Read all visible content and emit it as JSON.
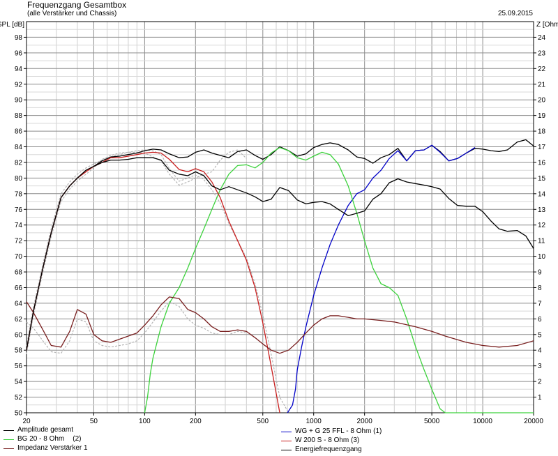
{
  "chart_data": {
    "type": "line",
    "title": "Frequenzgang Gesamtbox",
    "subtitle": "(alle Verstärker und Chassis)",
    "date": "25.09.2015",
    "ylabel_left": "SPL [dB]",
    "ylabel_right": "Z [Ohm]",
    "x_scale": "log",
    "xlim": [
      20,
      20000
    ],
    "ylim_left": [
      50,
      100
    ],
    "ylim_right": [
      0,
      25
    ],
    "grid": true,
    "x_tick_labels": [
      "20",
      "50",
      "100",
      "200",
      "500",
      "1000",
      "2000",
      "5000",
      "10000",
      "20000"
    ],
    "y_left_ticks": [
      50,
      52,
      54,
      56,
      58,
      60,
      62,
      64,
      66,
      68,
      70,
      72,
      74,
      76,
      78,
      80,
      82,
      84,
      86,
      88,
      90,
      92,
      94,
      96,
      98
    ],
    "y_right_ticks": [
      1,
      2,
      3,
      4,
      5,
      6,
      7,
      8,
      9,
      10,
      11,
      12,
      13,
      14,
      15,
      16,
      17,
      18,
      19,
      20,
      21,
      22,
      23,
      24
    ],
    "series": [
      {
        "name": "Amplitude gesamt",
        "color": "#000000",
        "x": [
          20,
          22,
          25,
          28,
          32,
          36,
          40,
          45,
          50,
          56,
          63,
          71,
          80,
          90,
          100,
          112,
          125,
          140,
          160,
          180,
          200,
          224,
          250,
          280,
          315,
          355,
          400,
          450,
          500,
          560,
          630,
          710,
          800,
          900,
          1000,
          1120,
          1250,
          1400,
          1600,
          1800,
          2000,
          2240,
          2500,
          2800,
          3150,
          3550,
          4000,
          4500,
          5000,
          5600,
          6300,
          7100,
          8000,
          9000,
          10000,
          11200,
          12500,
          14000,
          16000,
          18000,
          20000
        ],
        "y": [
          58,
          63,
          68.5,
          73,
          77.5,
          79,
          80,
          81,
          81.5,
          82.2,
          82.7,
          82.8,
          83,
          83.2,
          83.5,
          83.7,
          83.6,
          83.1,
          82.6,
          82.7,
          83.3,
          83.6,
          83.2,
          82.9,
          82.6,
          83.4,
          83.6,
          82.9,
          82.4,
          83,
          84,
          83.5,
          82.8,
          83.1,
          83.9,
          84.3,
          84.5,
          84.3,
          83.6,
          82.7,
          82.5,
          81.9,
          82.6,
          83,
          83.8,
          82.2,
          83.5,
          83.6,
          84.2,
          83.4,
          82.2,
          82.5,
          83.2,
          83.8,
          83.7,
          83.5,
          83.4,
          83.6,
          84.6,
          84.9,
          84.1
        ]
      },
      {
        "name": "WG + G 25 FFL - 8 Ohm (1)",
        "color": "#0000c8",
        "x": [
          700,
          750,
          780,
          800,
          850,
          900,
          1000,
          1120,
          1250,
          1400,
          1600,
          1800,
          2000,
          2240,
          2500,
          2800,
          3150,
          3550,
          4000,
          4500,
          5000,
          5600,
          6300,
          7100,
          8000,
          9000
        ],
        "y": [
          50,
          51,
          53,
          55.5,
          58.5,
          61,
          65,
          68.5,
          71.5,
          74,
          76.5,
          78,
          78.5,
          80,
          81,
          82.5,
          83.5,
          82.2,
          83.5,
          83.6,
          84.2,
          83.3,
          82.2,
          82.5,
          83.2,
          83.9
        ]
      },
      {
        "name": "BG 20 - 8 Ohm",
        "tag": "(2)",
        "color": "#3cd23c",
        "x": [
          100,
          104,
          108,
          112,
          125,
          140,
          160,
          180,
          200,
          224,
          250,
          280,
          315,
          355,
          400,
          450,
          500,
          560,
          630,
          710,
          800,
          900,
          1000,
          1120,
          1250,
          1400,
          1600,
          1800,
          2000,
          2240,
          2500,
          2800,
          3150,
          3550,
          4000,
          4500,
          5000,
          5600,
          6000,
          20000
        ],
        "y": [
          50,
          52,
          55,
          57,
          61,
          64,
          66,
          68.5,
          71,
          73.5,
          76,
          78.5,
          80.5,
          81.6,
          81.7,
          81.3,
          82,
          83.2,
          83.9,
          83.5,
          82.6,
          82.3,
          82.8,
          83.3,
          83,
          81.8,
          79,
          75.5,
          72,
          68.5,
          66.5,
          66,
          65,
          62,
          58.5,
          55.5,
          53,
          50.5,
          50,
          50
        ]
      },
      {
        "name": "W 200 S - 8 Ohm (3)",
        "color": "#c81e1e",
        "x": [
          20,
          22,
          25,
          28,
          32,
          36,
          40,
          45,
          50,
          56,
          63,
          71,
          80,
          90,
          100,
          112,
          125,
          140,
          160,
          180,
          200,
          224,
          250,
          280,
          315,
          355,
          400,
          450,
          500,
          560,
          630
        ],
        "y": [
          58,
          63,
          68.5,
          73,
          77.5,
          79,
          80,
          80.8,
          81.5,
          82,
          82.6,
          82.6,
          82.8,
          83,
          83.2,
          83.3,
          83.2,
          82.4,
          81.1,
          80.8,
          81.2,
          80.8,
          79.5,
          77.5,
          74.5,
          72,
          69.5,
          66,
          61.5,
          56,
          50
        ]
      },
      {
        "name": "Impedanz Verstärker 1",
        "axis": "right",
        "color": "#781e1e",
        "x": [
          20,
          22,
          25,
          28,
          32,
          36,
          40,
          45,
          50,
          56,
          63,
          71,
          80,
          90,
          100,
          112,
          125,
          140,
          160,
          180,
          200,
          224,
          250,
          280,
          315,
          355,
          400,
          450,
          500,
          560,
          630,
          710,
          800,
          900,
          1000,
          1120,
          1250,
          1400,
          1600,
          1800,
          2000,
          2500,
          3000,
          4000,
          5000,
          6000,
          8000,
          10000,
          12500,
          16000,
          20000
        ],
        "y": [
          7.1,
          6.4,
          5.3,
          4.3,
          4.2,
          5.2,
          6.6,
          6.3,
          5,
          4.6,
          4.5,
          4.7,
          4.9,
          5.1,
          5.6,
          6.2,
          6.9,
          7.4,
          7.3,
          6.6,
          6.4,
          6,
          5.5,
          5.2,
          5.2,
          5.3,
          5.2,
          4.8,
          4.4,
          4,
          3.8,
          4,
          4.5,
          5.1,
          5.6,
          6,
          6.2,
          6.2,
          6.1,
          6,
          6,
          5.9,
          5.8,
          5.5,
          5.2,
          4.9,
          4.5,
          4.3,
          4.2,
          4.3,
          4.6
        ]
      },
      {
        "name": "Energiefrequenzgang",
        "color": "#000000",
        "x": [
          20,
          22,
          25,
          28,
          32,
          36,
          40,
          45,
          50,
          56,
          63,
          71,
          80,
          90,
          100,
          112,
          125,
          140,
          160,
          180,
          200,
          224,
          250,
          280,
          315,
          355,
          400,
          450,
          500,
          560,
          630,
          710,
          800,
          900,
          1000,
          1120,
          1250,
          1400,
          1600,
          1800,
          2000,
          2240,
          2500,
          2800,
          3150,
          3550,
          4000,
          4500,
          5000,
          5600,
          6300,
          7100,
          8000,
          9000,
          10000,
          11200,
          12500,
          14000,
          16000,
          18000,
          20000
        ],
        "y": [
          58,
          63,
          68.5,
          73,
          77.5,
          79,
          80,
          81,
          81.5,
          82,
          82.3,
          82.3,
          82.4,
          82.6,
          82.6,
          82.6,
          82.3,
          81,
          80.5,
          80.3,
          80.8,
          80.3,
          79,
          78.5,
          78.9,
          78.5,
          78.1,
          77.6,
          77,
          77.3,
          78.8,
          78.4,
          77.2,
          76.7,
          76.9,
          77,
          76.7,
          76,
          75.2,
          75.5,
          75.8,
          77.3,
          78,
          79.4,
          79.9,
          79.5,
          79.3,
          79.1,
          78.9,
          78.6,
          77.4,
          76.5,
          76.4,
          76.4,
          75.7,
          74.5,
          73.5,
          73.2,
          73.3,
          72.6,
          71
        ]
      }
    ],
    "ref_series": [
      {
        "color": "#b4b4b4",
        "x": [
          20,
          22,
          25,
          28,
          32,
          36,
          40,
          45,
          50,
          56,
          63,
          71,
          80,
          90,
          100,
          112,
          125,
          140,
          160,
          180,
          200,
          224,
          250,
          280,
          315,
          355,
          400,
          450,
          500,
          560,
          630,
          710
        ],
        "y": [
          58.5,
          63.5,
          69,
          73.5,
          78,
          79.5,
          80.5,
          81.3,
          81.8,
          82.3,
          82.7,
          83,
          83.3,
          83.5,
          83.6,
          83.5,
          83,
          81.2,
          79.6,
          80,
          80.4,
          79.8,
          78.5,
          76.8,
          74.2,
          72,
          69.8,
          66.5,
          62.5,
          57.5,
          52,
          50
        ]
      },
      {
        "color": "#b4b4b4",
        "x": [
          20,
          22,
          25,
          28,
          32,
          36,
          40,
          45,
          50,
          56,
          63,
          71,
          80,
          90,
          100,
          112,
          125,
          140,
          160,
          180,
          200,
          224,
          250,
          280,
          315,
          355,
          400
        ],
        "y": [
          57.5,
          62.5,
          68,
          72.5,
          77,
          78.6,
          79.6,
          80.5,
          81.3,
          82.4,
          82.9,
          83.2,
          83.3,
          83.3,
          83.2,
          82.7,
          82.2,
          80.5,
          79.1,
          79.5,
          80,
          80.5,
          80.8,
          82.3,
          83.3,
          83.6,
          82.5
        ]
      },
      {
        "color": "#b4b4b4",
        "axis": "right",
        "x": [
          20,
          22,
          25,
          28,
          32,
          36,
          40,
          45,
          50,
          56,
          63,
          71,
          80,
          90,
          100,
          112,
          125,
          140,
          160,
          180,
          200,
          224,
          250,
          280,
          315,
          355,
          400
        ],
        "y": [
          5.8,
          5.4,
          4.6,
          3.9,
          3.8,
          4.6,
          6,
          5.8,
          4.6,
          4.3,
          4.2,
          4.3,
          4.4,
          4.6,
          5.1,
          5.8,
          6.5,
          7.1,
          6.8,
          6,
          5.6,
          5.4,
          5.1,
          5,
          5,
          5.2,
          5.1
        ]
      }
    ]
  }
}
